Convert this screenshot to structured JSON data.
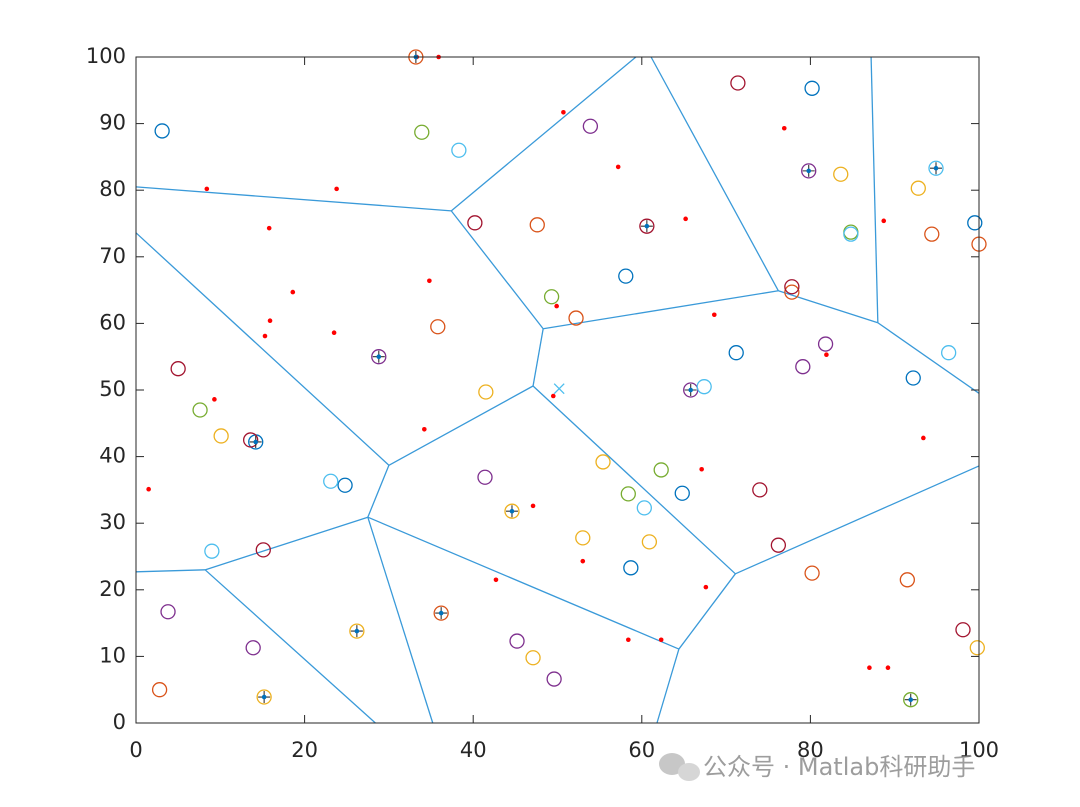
{
  "chart_data": {
    "type": "scatter",
    "xlim": [
      0,
      100
    ],
    "ylim": [
      0,
      100
    ],
    "xticks": [
      0,
      20,
      40,
      60,
      80,
      100
    ],
    "yticks": [
      0,
      10,
      20,
      30,
      40,
      50,
      60,
      70,
      80,
      90,
      100
    ],
    "grid": false,
    "edge_color": "#3A9AD9",
    "edges": [
      {
        "x": [
          0,
          37.4
        ],
        "y": [
          80.5,
          76.9
        ]
      },
      {
        "x": [
          37.4,
          59.3
        ],
        "y": [
          76.9,
          100
        ]
      },
      {
        "x": [
          37.4,
          48.3
        ],
        "y": [
          76.9,
          59.2
        ]
      },
      {
        "x": [
          48.3,
          47.1
        ],
        "y": [
          59.2,
          50.6
        ]
      },
      {
        "x": [
          48.3,
          76.2
        ],
        "y": [
          59.2,
          64.9
        ]
      },
      {
        "x": [
          76.2,
          61.1
        ],
        "y": [
          64.9,
          100
        ]
      },
      {
        "x": [
          76.2,
          88.0
        ],
        "y": [
          64.9,
          60.1
        ]
      },
      {
        "x": [
          88.0,
          87.2
        ],
        "y": [
          60.1,
          100
        ]
      },
      {
        "x": [
          88.0,
          100
        ],
        "y": [
          60.1,
          49.5
        ]
      },
      {
        "x": [
          47.1,
          30.0
        ],
        "y": [
          50.6,
          38.7
        ]
      },
      {
        "x": [
          30.0,
          0
        ],
        "y": [
          38.7,
          73.6
        ]
      },
      {
        "x": [
          30.0,
          27.5
        ],
        "y": [
          38.7,
          30.9
        ]
      },
      {
        "x": [
          27.5,
          8.2
        ],
        "y": [
          30.9,
          23.0
        ]
      },
      {
        "x": [
          8.2,
          0
        ],
        "y": [
          23.0,
          22.7
        ]
      },
      {
        "x": [
          8.2,
          28.4
        ],
        "y": [
          23.0,
          0
        ]
      },
      {
        "x": [
          27.5,
          35.2
        ],
        "y": [
          30.9,
          0
        ]
      },
      {
        "x": [
          27.5,
          64.4
        ],
        "y": [
          30.9,
          11.1
        ]
      },
      {
        "x": [
          64.4,
          61.8
        ],
        "y": [
          11.1,
          0
        ]
      },
      {
        "x": [
          64.4,
          71.1
        ],
        "y": [
          11.1,
          22.4
        ]
      },
      {
        "x": [
          71.1,
          100
        ],
        "y": [
          22.4,
          38.6
        ]
      },
      {
        "x": [
          71.1,
          47.1
        ],
        "y": [
          22.4,
          50.6
        ]
      }
    ],
    "series": [
      {
        "color": "#0072BD",
        "marker": "circle",
        "x": [
          3.1,
          80.2,
          99.5,
          58.1,
          71.2,
          92.2,
          14.2,
          24.8,
          64.8,
          58.7
        ],
        "y": [
          88.9,
          95.3,
          75.1,
          67.1,
          55.6,
          51.8,
          42.2,
          35.7,
          34.5,
          23.3
        ]
      },
      {
        "color": "#D95319",
        "marker": "circle",
        "x": [
          33.2,
          94.4,
          100,
          47.6,
          52.2,
          77.8,
          35.8,
          80.2,
          91.5,
          2.8,
          36.2
        ],
        "y": [
          100,
          73.4,
          71.9,
          74.8,
          60.8,
          64.7,
          59.5,
          22.5,
          21.5,
          5.0,
          16.5
        ]
      },
      {
        "color": "#EDB120",
        "marker": "circle",
        "x": [
          83.6,
          92.8,
          41.5,
          10.1,
          44.6,
          55.4,
          60.9,
          53.0,
          15.2,
          26.2,
          47.1,
          99.8
        ],
        "y": [
          82.4,
          80.3,
          49.7,
          43.1,
          31.8,
          39.2,
          27.2,
          27.8,
          3.9,
          13.8,
          9.8,
          11.3
        ]
      },
      {
        "color": "#7E2F8E",
        "marker": "circle",
        "x": [
          53.9,
          79.8,
          28.8,
          81.8,
          79.1,
          65.8,
          41.4,
          3.8,
          13.9,
          45.2,
          49.6
        ],
        "y": [
          89.6,
          82.9,
          55.0,
          56.9,
          53.5,
          50.0,
          36.9,
          16.7,
          11.3,
          12.3,
          6.6
        ]
      },
      {
        "color": "#77AC30",
        "marker": "circle",
        "x": [
          33.9,
          84.8,
          49.3,
          7.6,
          62.3,
          58.4,
          91.9
        ],
        "y": [
          88.7,
          73.7,
          64.0,
          47.0,
          38.0,
          34.4,
          3.5
        ]
      },
      {
        "color": "#4DBEEE",
        "marker": "circle",
        "x": [
          38.3,
          94.9,
          84.8,
          96.4,
          67.4,
          23.1,
          60.3,
          9.0
        ],
        "y": [
          86.0,
          83.3,
          73.4,
          55.6,
          50.5,
          36.3,
          32.3,
          25.8
        ]
      },
      {
        "color": "#A2142F",
        "marker": "circle",
        "x": [
          71.4,
          40.2,
          60.6,
          77.8,
          5.0,
          13.6,
          74.0,
          76.2,
          15.1,
          98.1
        ],
        "y": [
          96.1,
          75.1,
          74.6,
          65.5,
          53.2,
          42.5,
          35.0,
          26.7,
          26.0,
          14.0
        ]
      },
      {
        "color": "#FF0000",
        "marker": "dot",
        "x": [
          33.3,
          35.9,
          50.7,
          8.4,
          23.8,
          57.2,
          76.9,
          15.8,
          65.2,
          88.7,
          18.6,
          34.8,
          15.9,
          23.5,
          15.3,
          49.9,
          68.6,
          81.9,
          49.5,
          9.3,
          34.2,
          93.4,
          67.1,
          1.5,
          47.1,
          53.0,
          42.7,
          67.6,
          58.4,
          62.3,
          87.0,
          89.2
        ],
        "y": [
          100,
          100,
          91.7,
          80.2,
          80.2,
          83.5,
          89.3,
          74.3,
          75.7,
          75.4,
          64.7,
          66.4,
          60.4,
          58.6,
          58.1,
          62.6,
          61.3,
          55.3,
          49.1,
          48.6,
          44.1,
          42.8,
          38.1,
          35.1,
          32.6,
          24.3,
          21.5,
          20.4,
          12.5,
          12.5,
          8.3,
          8.3
        ]
      },
      {
        "color": "#0072BD",
        "marker": "plus",
        "x": [
          28.8,
          14.2,
          44.6,
          36.2,
          26.2,
          15.2,
          60.6,
          79.8,
          94.9,
          65.8,
          91.9,
          33.2
        ],
        "y": [
          55.0,
          42.2,
          31.8,
          16.5,
          13.8,
          3.9,
          74.6,
          82.9,
          83.3,
          50.0,
          3.5,
          100
        ]
      },
      {
        "color": "#4DBEEE",
        "marker": "x",
        "x": [
          50.2
        ],
        "y": [
          50.2
        ]
      }
    ]
  },
  "watermark": "公众号 · Matlab科研助手"
}
